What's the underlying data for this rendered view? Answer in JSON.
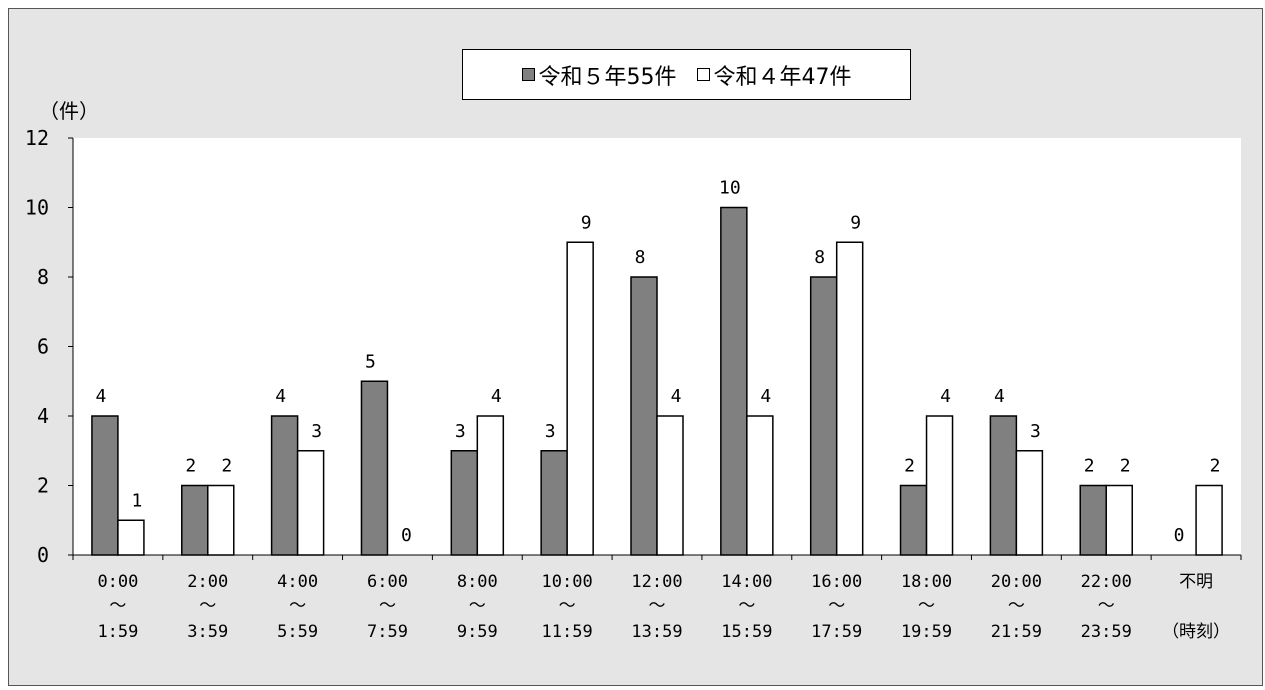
{
  "chart_data": {
    "type": "bar",
    "unit_label": "（件）",
    "categories": [
      {
        "top": "0:00",
        "mid": "～",
        "bottom": "1:59"
      },
      {
        "top": "2:00",
        "mid": "～",
        "bottom": "3:59"
      },
      {
        "top": "4:00",
        "mid": "～",
        "bottom": "5:59"
      },
      {
        "top": "6:00",
        "mid": "～",
        "bottom": "7:59"
      },
      {
        "top": "8:00",
        "mid": "～",
        "bottom": "9:59"
      },
      {
        "top": "10:00",
        "mid": "～",
        "bottom": "11:59"
      },
      {
        "top": "12:00",
        "mid": "～",
        "bottom": "13:59"
      },
      {
        "top": "14:00",
        "mid": "～",
        "bottom": "15:59"
      },
      {
        "top": "16:00",
        "mid": "～",
        "bottom": "17:59"
      },
      {
        "top": "18:00",
        "mid": "～",
        "bottom": "19:59"
      },
      {
        "top": "20:00",
        "mid": "～",
        "bottom": "21:59"
      },
      {
        "top": "22:00",
        "mid": "～",
        "bottom": "23:59"
      },
      {
        "top": "不明",
        "mid": "",
        "bottom": "（時刻）"
      }
    ],
    "series": [
      {
        "name": "令和５年55件",
        "color": "#808080",
        "values": [
          4,
          2,
          4,
          5,
          3,
          3,
          8,
          10,
          8,
          2,
          4,
          2,
          0
        ]
      },
      {
        "name": "令和４年47件",
        "color": "#ffffff",
        "values": [
          1,
          2,
          3,
          0,
          4,
          9,
          4,
          4,
          9,
          4,
          3,
          2,
          2
        ]
      }
    ],
    "ylim": [
      0,
      12
    ],
    "yticks": [
      0,
      2,
      4,
      6,
      8,
      10,
      12
    ],
    "legend_position": "top-center",
    "grid": false
  }
}
